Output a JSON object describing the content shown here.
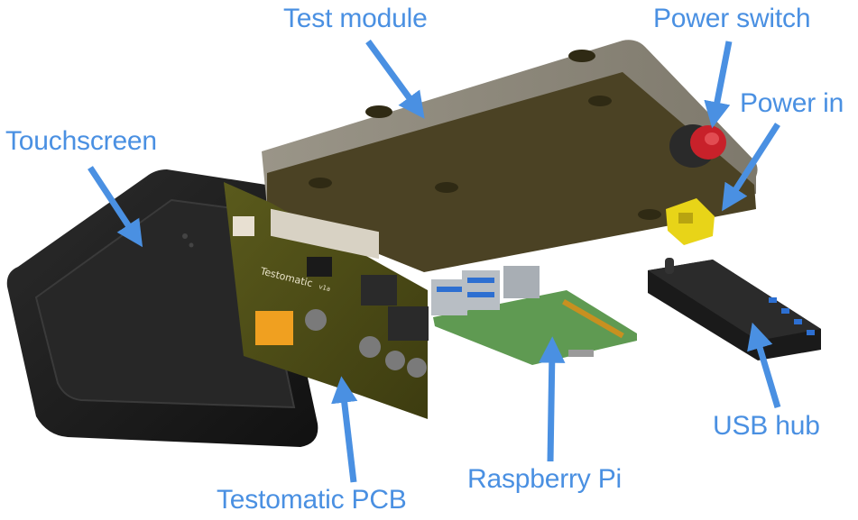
{
  "labels": {
    "test_module": "Test module",
    "power_switch": "Power switch",
    "power_in": "Power in",
    "touchscreen": "Touchscreen",
    "usb_hub": "USB hub",
    "raspberry_pi": "Raspberry Pi",
    "testomatic_pcb": "Testomatic PCB"
  },
  "pcb_silkscreen": {
    "title": "Testomatic",
    "version": "v1a"
  },
  "colors": {
    "label": "#4a90e2",
    "arrow": "#4a90e2",
    "enclosure_top": "#8a8578",
    "enclosure_bottom": "#4a4123",
    "touchscreen": "#1e1e1e",
    "pcb": "#4b4a16",
    "raspberry_pi": "#5f9a52",
    "usb_hub": "#1a1a1a",
    "power_switch": "#c8212a",
    "power_connector": "#e8d418",
    "usb_ports": "#2d6fd1"
  },
  "icons": {
    "arrow": "arrow-icon"
  }
}
